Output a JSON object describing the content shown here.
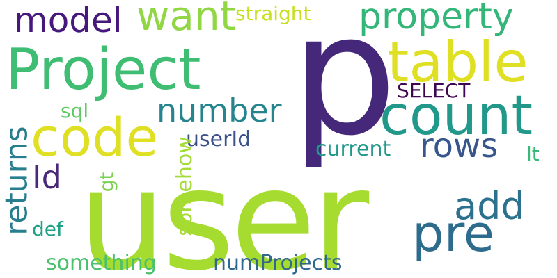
{
  "words": [
    {
      "text": "user",
      "color": "#a6db2f"
    },
    {
      "text": "p",
      "color": "#46287b"
    },
    {
      "text": "Project",
      "color": "#3fbd73"
    },
    {
      "text": "table",
      "color": "#dfe023"
    },
    {
      "text": "count",
      "color": "#21988a"
    },
    {
      "text": "code",
      "color": "#dfe023"
    },
    {
      "text": "pre",
      "color": "#2e6c8e"
    },
    {
      "text": "property",
      "color": "#34b679"
    },
    {
      "text": "want",
      "color": "#90d743"
    },
    {
      "text": "model",
      "color": "#46187b"
    },
    {
      "text": "number",
      "color": "#25848e"
    },
    {
      "text": "rows",
      "color": "#38568b"
    },
    {
      "text": "add",
      "color": "#2c728e"
    },
    {
      "text": "returns",
      "color": "#287d8e"
    },
    {
      "text": "Id",
      "color": "#482878"
    },
    {
      "text": "straight",
      "color": "#c8e020"
    },
    {
      "text": "SELECT",
      "color": "#3e0751"
    },
    {
      "text": "userId",
      "color": "#3b528b"
    },
    {
      "text": "current",
      "color": "#21998a"
    },
    {
      "text": "somehow",
      "color": "#a5db36"
    },
    {
      "text": "sql",
      "color": "#5ec962"
    },
    {
      "text": "gt",
      "color": "#7ad151"
    },
    {
      "text": "lt",
      "color": "#38b977"
    },
    {
      "text": "def",
      "color": "#1fa187"
    },
    {
      "text": "something",
      "color": "#4ac16d"
    },
    {
      "text": "numProjects",
      "color": "#31688e"
    }
  ]
}
